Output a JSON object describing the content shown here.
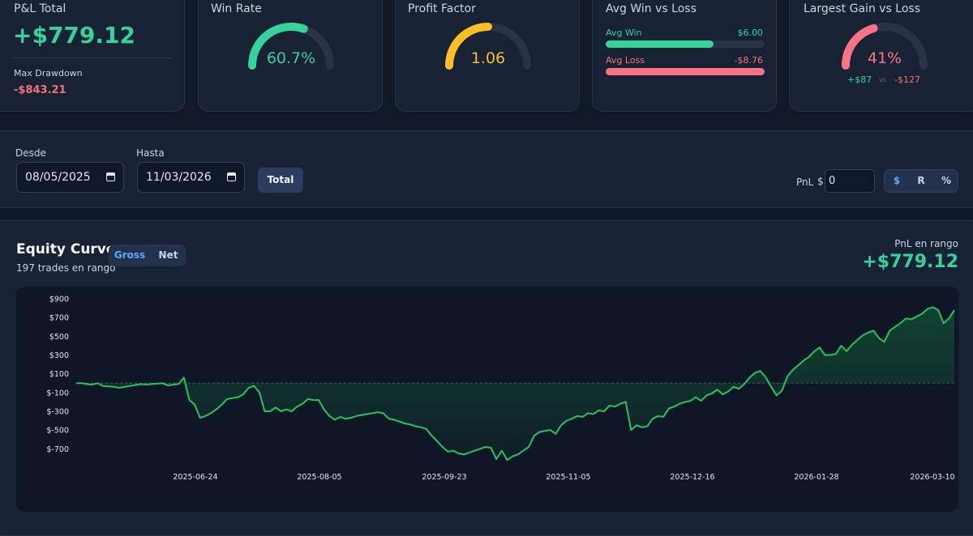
{
  "pl_total": {
    "title": "P&L Total",
    "value": "+$779.12",
    "drawdown_label": "Max Drawdown",
    "drawdown_value": "-$843.21"
  },
  "win_rate": {
    "title": "Win Rate",
    "value_text": "60.7%",
    "fraction": 0.607,
    "color": "#34d399"
  },
  "profit_factor": {
    "title": "Profit Factor",
    "value_text": "1.06",
    "fraction": 0.5,
    "color": "#fbbf24"
  },
  "avg_win_loss": {
    "title": "Avg Win vs Loss",
    "win_label": "Avg Win",
    "win_value": "$6.00",
    "win_fraction": 0.68,
    "loss_label": "Avg Loss",
    "loss_value": "-$8.76",
    "loss_fraction": 1.0,
    "win_color": "#34d399",
    "loss_color": "#f87171"
  },
  "largest_gain_loss": {
    "title": "Largest Gain vs Loss",
    "value_text": "41%",
    "fraction": 0.41,
    "gain": "+$87",
    "vs": "vs",
    "loss": "-$127",
    "color": "#fb7185"
  },
  "filters": {
    "from_label": "Desde",
    "from_value": "08/05/2025",
    "to_label": "Hasta",
    "to_value": "11/03/2026",
    "total_button": "Total",
    "pnl_label": "PnL",
    "currency_symbol": "$",
    "pnl_value": "0",
    "units": [
      "$",
      "R",
      "%"
    ],
    "active_unit": "$"
  },
  "equity": {
    "title": "Equity Curve",
    "subtitle": "197 trades en rango",
    "toggle": [
      "Gross",
      "Net"
    ],
    "active_toggle": "Gross",
    "range_label": "PnL en rango",
    "range_value": "+$779.12"
  },
  "chart_data": {
    "type": "area",
    "y_tick_labels": [
      "$900",
      "$700",
      "$500",
      "$300",
      "$100",
      "$-100",
      "$-300",
      "$-500",
      "$-700"
    ],
    "y_tick_values": [
      900,
      700,
      500,
      300,
      100,
      -100,
      -300,
      -500,
      -700
    ],
    "x_tick_labels": [
      "2025-06-24",
      "2025-08-05",
      "2025-09-23",
      "2025-11-05",
      "2025-12-16",
      "2026-01-28",
      "2026-03-10"
    ],
    "ylim": [
      -870,
      960
    ],
    "zero_line": 0,
    "line_color": "#22c55e",
    "series": [
      {
        "values": [
          0,
          0,
          -10,
          -15,
          0,
          -30,
          -35,
          -40,
          -50,
          -40,
          -30,
          -20,
          -10,
          -15,
          -10,
          -5,
          0,
          -25,
          -15,
          -10,
          60,
          -180,
          -230,
          -370,
          -350,
          -320,
          -280,
          -230,
          -170,
          -160,
          -150,
          -120,
          -50,
          -30,
          -100,
          -300,
          -300,
          -260,
          -300,
          -280,
          -300,
          -250,
          -220,
          -170,
          -180,
          -180,
          -280,
          -350,
          -390,
          -360,
          -380,
          -370,
          -350,
          -340,
          -330,
          -320,
          -310,
          -320,
          -380,
          -390,
          -410,
          -430,
          -440,
          -460,
          -470,
          -490,
          -560,
          -620,
          -680,
          -730,
          -720,
          -750,
          -760,
          -740,
          -720,
          -700,
          -680,
          -690,
          -810,
          -720,
          -820,
          -780,
          -760,
          -720,
          -680,
          -560,
          -520,
          -510,
          -500,
          -540,
          -450,
          -400,
          -380,
          -350,
          -360,
          -320,
          -330,
          -290,
          -300,
          -240,
          -250,
          -220,
          -200,
          -500,
          -450,
          -470,
          -460,
          -380,
          -350,
          -360,
          -270,
          -250,
          -220,
          -200,
          -190,
          -150,
          -190,
          -130,
          -110,
          -70,
          -120,
          -90,
          -40,
          -60,
          -10,
          60,
          110,
          130,
          60,
          -40,
          -130,
          -80,
          70,
          140,
          190,
          240,
          280,
          340,
          380,
          300,
          300,
          310,
          400,
          340,
          410,
          460,
          510,
          540,
          560,
          480,
          440,
          560,
          600,
          640,
          690,
          680,
          710,
          740,
          790,
          810,
          780,
          640,
          690,
          780
        ]
      }
    ]
  }
}
